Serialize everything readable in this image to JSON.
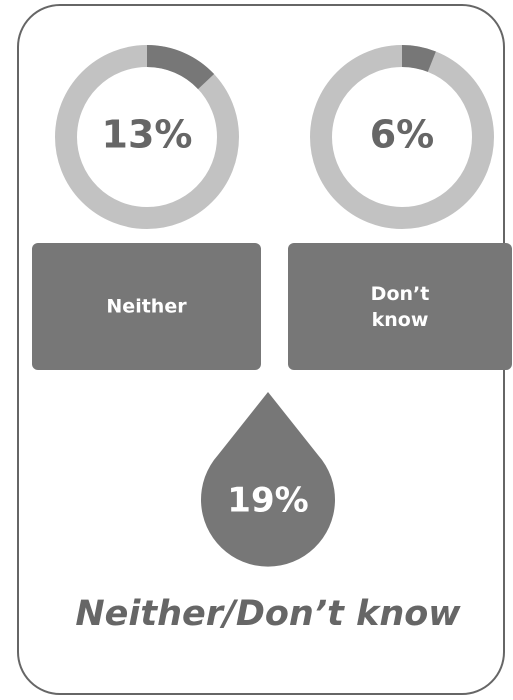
{
  "gauges": [
    {
      "value": 13,
      "value_label": "13%",
      "category": "Neither"
    },
    {
      "value": 6,
      "value_label": "6%",
      "category": "Don’t know"
    }
  ],
  "total": {
    "value": 19,
    "value_label": "19%"
  },
  "title": "Neither/Don’t know"
}
